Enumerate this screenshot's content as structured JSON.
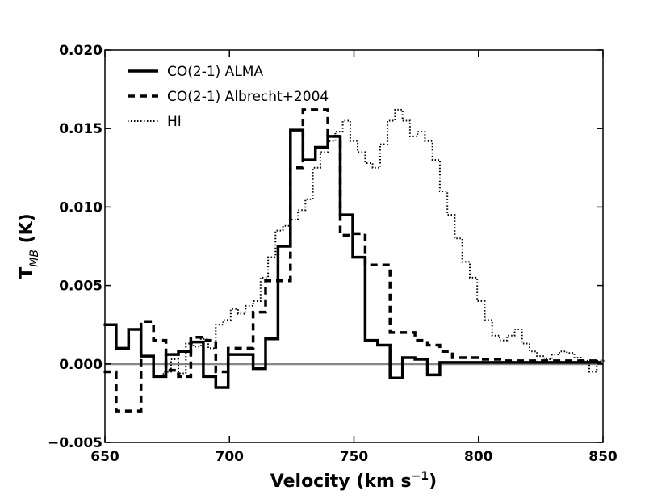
{
  "chart_data": {
    "type": "line",
    "style": "step",
    "xlabel": "Velocity (km s",
    "xlabel_sup": "−1",
    "xlabel_tail": ")",
    "ylabel": "T",
    "ylabel_sub": "MB",
    "ylabel_tail": " (K)",
    "xlim": [
      650,
      850
    ],
    "ylim": [
      -0.005,
      0.02
    ],
    "xticks": [
      650,
      700,
      750,
      800,
      850
    ],
    "xtick_labels": [
      "650",
      "700",
      "750",
      "800",
      "850"
    ],
    "yticks": [
      -0.005,
      0.0,
      0.005,
      0.01,
      0.015,
      0.02
    ],
    "ytick_labels": [
      "−0.005",
      "0.000",
      "0.005",
      "0.010",
      "0.015",
      "0.020"
    ],
    "baseline": 0.0,
    "baseline_color": "#888888",
    "legend_position": "top-left",
    "series": [
      {
        "name": "CO(2-1) ALMA",
        "linestyle": "solid",
        "color": "#000000",
        "x": [
          652,
          657,
          662,
          667,
          672,
          677,
          682,
          687,
          692,
          697,
          702,
          707,
          712,
          717,
          722,
          727,
          732,
          737,
          742,
          747,
          752,
          757,
          762,
          767,
          772,
          777,
          782,
          787,
          792,
          797,
          802,
          807,
          812,
          817,
          822,
          827,
          832,
          837,
          842,
          847
        ],
        "y": [
          0.0025,
          0.001,
          0.0022,
          0.0005,
          -0.0008,
          0.0006,
          0.0008,
          0.0014,
          -0.0008,
          -0.0015,
          0.0006,
          0.0006,
          -0.0003,
          0.0016,
          0.0075,
          0.0149,
          0.013,
          0.0138,
          0.0145,
          0.0095,
          0.0068,
          0.0015,
          0.0012,
          -0.0009,
          0.0004,
          0.0003,
          -0.0007,
          0.0001,
          0.0001,
          0.0001,
          0.0001,
          0.0001,
          0.0001,
          0.0001,
          0.0001,
          0.0001,
          0.0001,
          0.0001,
          0.0001,
          0.0001
        ]
      },
      {
        "name": "CO(2-1) Albrecht+2004",
        "linestyle": "dashed",
        "color": "#000000",
        "x": [
          652,
          657,
          662,
          667,
          672,
          677,
          682,
          687,
          692,
          697,
          702,
          707,
          712,
          717,
          722,
          727,
          732,
          737,
          742,
          747,
          752,
          757,
          762,
          767,
          772,
          777,
          782,
          787,
          792,
          797,
          802,
          807,
          812,
          817,
          822,
          827,
          832,
          837,
          842,
          847
        ],
        "y": [
          -0.0005,
          -0.003,
          -0.003,
          0.0027,
          0.0015,
          -0.0004,
          -0.0008,
          0.0017,
          0.0015,
          -0.0005,
          0.001,
          0.001,
          0.0033,
          0.0053,
          0.0053,
          0.0125,
          0.0162,
          0.0162,
          0.0145,
          0.0082,
          0.0083,
          0.0063,
          0.0063,
          0.002,
          0.002,
          0.0015,
          0.0012,
          0.0008,
          0.0004,
          0.0004,
          0.0003,
          0.0003,
          0.0002,
          0.0002,
          0.0002,
          0.0002,
          0.0002,
          0.0002,
          0.0002,
          0.0002
        ]
      },
      {
        "name": "HI",
        "linestyle": "dotted",
        "color": "#000000",
        "x": [
          672,
          675,
          678,
          681,
          684,
          687,
          690,
          693,
          696,
          699,
          702,
          705,
          708,
          711,
          714,
          717,
          720,
          723,
          726,
          729,
          732,
          735,
          738,
          741,
          744,
          747,
          750,
          753,
          756,
          759,
          762,
          765,
          768,
          771,
          774,
          777,
          780,
          783,
          786,
          789,
          792,
          795,
          798,
          801,
          804,
          807,
          810,
          813,
          816,
          819,
          822,
          825,
          828,
          831,
          834,
          837,
          840,
          843,
          846,
          849
        ],
        "y": [
          -0.0008,
          -0.0005,
          0.0003,
          -0.0006,
          0.0013,
          0.0011,
          0.0016,
          0.001,
          0.0025,
          0.0028,
          0.0035,
          0.0032,
          0.0037,
          0.004,
          0.0055,
          0.0068,
          0.0085,
          0.0088,
          0.0092,
          0.0098,
          0.0105,
          0.0125,
          0.0135,
          0.0142,
          0.0148,
          0.0155,
          0.0142,
          0.0135,
          0.0128,
          0.0125,
          0.014,
          0.0155,
          0.0162,
          0.0155,
          0.0145,
          0.0148,
          0.0142,
          0.013,
          0.011,
          0.0095,
          0.008,
          0.0065,
          0.0055,
          0.004,
          0.0028,
          0.0018,
          0.0015,
          0.0018,
          0.0022,
          0.0013,
          0.0008,
          0.0005,
          0.0003,
          0.0006,
          0.0008,
          0.0007,
          0.0004,
          0.0002,
          -0.0005,
          0.0002
        ]
      }
    ]
  }
}
